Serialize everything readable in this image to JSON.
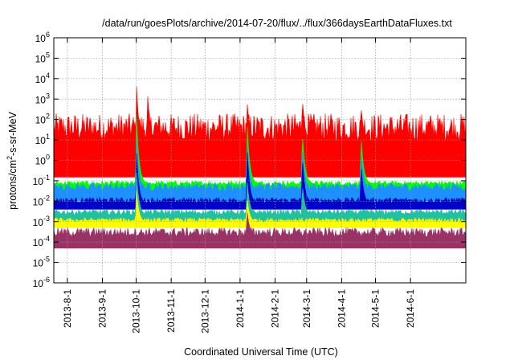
{
  "chart_data": {
    "type": "area",
    "title": "/data/run/goesPlots/archive/2014-07-20/flux/../flux/366daysEarthDataFluxes.txt",
    "xlabel": "Coordinated Universal Time (UTC)",
    "ylabel_main": "protons/cm",
    "ylabel_sup": "2",
    "ylabel_tail": "-s-sr-MeV",
    "y_scale": "log",
    "ylim": [
      1e-06,
      1000000.0
    ],
    "xlim": [
      "2013-07-20",
      "2014-07-20"
    ],
    "grid": true,
    "legend": "none",
    "y_ticks": [
      {
        "v": 1e-06,
        "base": "10",
        "exp": "-6"
      },
      {
        "v": 1e-05,
        "base": "10",
        "exp": "-5"
      },
      {
        "v": 0.0001,
        "base": "10",
        "exp": "-4"
      },
      {
        "v": 0.001,
        "base": "10",
        "exp": "-3"
      },
      {
        "v": 0.01,
        "base": "10",
        "exp": "-2"
      },
      {
        "v": 0.1,
        "base": "10",
        "exp": "-1"
      },
      {
        "v": 1.0,
        "base": "10",
        "exp": "0"
      },
      {
        "v": 10.0,
        "base": "10",
        "exp": "1"
      },
      {
        "v": 100.0,
        "base": "10",
        "exp": "2"
      },
      {
        "v": 1000.0,
        "base": "10",
        "exp": "3"
      },
      {
        "v": 10000.0,
        "base": "10",
        "exp": "4"
      },
      {
        "v": 100000.0,
        "base": "10",
        "exp": "5"
      },
      {
        "v": 1000000.0,
        "base": "10",
        "exp": "6"
      }
    ],
    "x_ticks": [
      {
        "date": "2013-08-01",
        "label": "2013-8-1"
      },
      {
        "date": "2013-09-01",
        "label": "2013-9-1"
      },
      {
        "date": "2013-10-01",
        "label": "2013-10-1"
      },
      {
        "date": "2013-11-01",
        "label": "2013-11-1"
      },
      {
        "date": "2013-12-01",
        "label": "2013-12-1"
      },
      {
        "date": "2014-01-01",
        "label": "2014-1-1"
      },
      {
        "date": "2014-02-01",
        "label": "2014-2-1"
      },
      {
        "date": "2014-03-01",
        "label": "2014-3-1"
      },
      {
        "date": "2014-04-01",
        "label": "2014-4-1"
      },
      {
        "date": "2014-05-01",
        "label": "2014-5-1"
      },
      {
        "date": "2014-06-01",
        "label": "2014-6-1"
      }
    ],
    "series": [
      {
        "color": "#ff0000",
        "lower": 0.15,
        "upper": 200,
        "typical": 8,
        "events": [
          {
            "date": "2013-10-01",
            "peak": 10000
          },
          {
            "date": "2013-10-11",
            "peak": 2500
          },
          {
            "date": "2014-01-07",
            "peak": 1500
          },
          {
            "date": "2014-02-25",
            "peak": 2000
          },
          {
            "date": "2014-04-18",
            "peak": 700
          }
        ]
      },
      {
        "color": "#00ff00",
        "lower": 0.03,
        "upper": 0.1,
        "typical": 0.07,
        "events": [
          {
            "date": "2013-10-01",
            "peak": 500
          },
          {
            "date": "2014-01-07",
            "peak": 200
          },
          {
            "date": "2014-02-25",
            "peak": 50
          },
          {
            "date": "2014-04-18",
            "peak": 30
          }
        ]
      },
      {
        "color": "#1e90ff",
        "lower": 0.01,
        "upper": 0.08,
        "typical": 0.03,
        "events": [
          {
            "date": "2013-10-01",
            "peak": 30
          },
          {
            "date": "2014-01-07",
            "peak": 20
          },
          {
            "date": "2014-02-25",
            "peak": 10
          },
          {
            "date": "2014-04-18",
            "peak": 5
          }
        ]
      },
      {
        "color": "#0000cd",
        "lower": 0.004,
        "upper": 0.015,
        "typical": 0.007,
        "events": [
          {
            "date": "2013-10-01",
            "peak": 5
          },
          {
            "date": "2014-01-07",
            "peak": 10
          },
          {
            "date": "2014-02-25",
            "peak": 3
          },
          {
            "date": "2014-04-18",
            "peak": 1
          }
        ]
      },
      {
        "color": "#20c0a0",
        "lower": 0.001,
        "upper": 0.004,
        "typical": 0.002,
        "events": [
          {
            "date": "2013-10-01",
            "peak": 0.5
          },
          {
            "date": "2014-01-07",
            "peak": 0.2
          },
          {
            "date": "2014-02-25",
            "peak": 0.1
          }
        ]
      },
      {
        "color": "#ffff00",
        "lower": 0.0005,
        "upper": 0.0015,
        "typical": 0.0009,
        "events": [
          {
            "date": "2013-10-01",
            "peak": 0.05
          },
          {
            "date": "2014-01-07",
            "peak": 0.02
          }
        ]
      },
      {
        "color": "#993366",
        "lower": 5e-05,
        "upper": 0.0005,
        "typical": 0.0002,
        "events": [
          {
            "date": "2014-01-07",
            "peak": 0.005
          }
        ]
      }
    ]
  }
}
